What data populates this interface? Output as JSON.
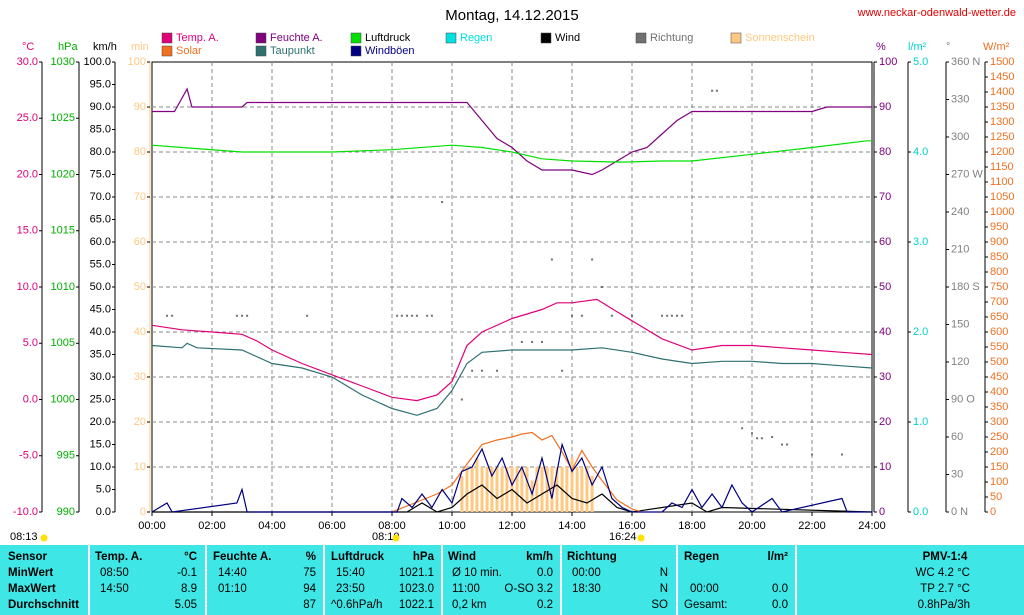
{
  "chart_data": {
    "type": "line",
    "title": "Montag, 14.12.2015",
    "source": "www.neckar-odenwald-wetter.de",
    "xlim": [
      0,
      24
    ],
    "xticks": [
      {
        "value": 0,
        "label": "00:00"
      },
      {
        "value": 2,
        "label": "02:00"
      },
      {
        "value": 4,
        "label": "04:00"
      },
      {
        "value": 6,
        "label": "06:00"
      },
      {
        "value": 8,
        "label": "08:00"
      },
      {
        "value": 10,
        "label": "10:00"
      },
      {
        "value": 12,
        "label": "12:00"
      },
      {
        "value": 14,
        "label": "14:00"
      },
      {
        "value": 16,
        "label": "16:00"
      },
      {
        "value": 18,
        "label": "18:00"
      },
      {
        "value": 20,
        "label": "20:00"
      },
      {
        "value": 22,
        "label": "22:00"
      },
      {
        "value": 24,
        "label": "24:00"
      }
    ],
    "xgrid": true,
    "annotations": [
      "08:13",
      "08:10",
      "16:24"
    ],
    "axes": {
      "temp": {
        "label": "°C",
        "color": "#e0007a",
        "lim": [
          -10,
          30
        ],
        "ticks": [
          {
            "value": -10,
            "label": "-10.0"
          },
          {
            "value": -5,
            "label": "-5.0"
          },
          {
            "value": 0,
            "label": "0.0"
          },
          {
            "value": 5,
            "label": "5.0"
          },
          {
            "value": 10,
            "label": "10.0"
          },
          {
            "value": 15,
            "label": "15.0"
          },
          {
            "value": 20,
            "label": "20.0"
          },
          {
            "value": 25,
            "label": "25.0"
          },
          {
            "value": 30,
            "label": "30.0"
          }
        ]
      },
      "press": {
        "label": "hPa",
        "color": "#00b000",
        "lim": [
          990,
          1030
        ],
        "ticks": [
          990,
          995,
          1000,
          1005,
          1010,
          1015,
          1020,
          1025,
          1030
        ]
      },
      "wind": {
        "label": "km/h",
        "color": "#000000",
        "lim": [
          0,
          100
        ],
        "ticks": [
          {
            "value": 0,
            "label": "0.0"
          },
          {
            "value": 5,
            "label": "5.0"
          },
          {
            "value": 10,
            "label": "10.0"
          },
          {
            "value": 15,
            "label": "15.0"
          },
          {
            "value": 20,
            "label": "20.0"
          },
          {
            "value": 25,
            "label": "25.0"
          },
          {
            "value": 30,
            "label": "30.0"
          },
          {
            "value": 35,
            "label": "35.0"
          },
          {
            "value": 40,
            "label": "40.0"
          },
          {
            "value": 45,
            "label": "45.0"
          },
          {
            "value": 50,
            "label": "50.0"
          },
          {
            "value": 55,
            "label": "55.0"
          },
          {
            "value": 60,
            "label": "60.0"
          },
          {
            "value": 65,
            "label": "65.0"
          },
          {
            "value": 70,
            "label": "70.0"
          },
          {
            "value": 75,
            "label": "75.0"
          },
          {
            "value": 80,
            "label": "80.0"
          },
          {
            "value": 85,
            "label": "85.0"
          },
          {
            "value": 90,
            "label": "90.0"
          },
          {
            "value": 95,
            "label": "95.0"
          },
          {
            "value": 100,
            "label": "100.0"
          }
        ]
      },
      "sun": {
        "label": "min",
        "color": "#ffc880",
        "lim": [
          0,
          100
        ],
        "ticks": [
          0,
          10,
          20,
          30,
          40,
          50,
          60,
          70,
          80,
          90,
          100
        ]
      },
      "hum": {
        "label": "%",
        "color": "#800080",
        "lim": [
          0,
          100
        ],
        "ticks": [
          0,
          10,
          20,
          30,
          40,
          50,
          60,
          70,
          80,
          90,
          100
        ],
        "grid": true
      },
      "rain": {
        "label": "l/m²",
        "color": "#00d0d0",
        "lim": [
          0,
          5
        ],
        "ticks": [
          {
            "value": 0,
            "label": "0.0"
          },
          {
            "value": 1,
            "label": "1.0"
          },
          {
            "value": 2,
            "label": "2.0"
          },
          {
            "value": 3,
            "label": "3.0"
          },
          {
            "value": 4,
            "label": "4.0"
          },
          {
            "value": 5,
            "label": "5.0"
          }
        ]
      },
      "dir": {
        "label": "°",
        "color": "#808080",
        "lim": [
          0,
          360
        ],
        "ticks": [
          {
            "value": 0,
            "label": "0 N"
          },
          30,
          60,
          {
            "value": 90,
            "label": "90 O"
          },
          120,
          150,
          {
            "value": 180,
            "label": "180 S"
          },
          210,
          240,
          {
            "value": 270,
            "label": "270 W"
          },
          300,
          330,
          {
            "value": 360,
            "label": "360 N"
          }
        ]
      },
      "solar": {
        "label": "W/m²",
        "color": "#f07020",
        "lim": [
          0,
          1500
        ],
        "ticks": [
          0,
          50,
          100,
          150,
          200,
          250,
          300,
          350,
          400,
          450,
          500,
          550,
          600,
          650,
          700,
          750,
          800,
          850,
          900,
          950,
          1000,
          1050,
          1100,
          1150,
          1200,
          1250,
          1300,
          1350,
          1400,
          1450,
          1500
        ]
      }
    },
    "series": [
      {
        "name": "Temp. A.",
        "color": "#e0007a",
        "axis": "temp",
        "style": "line",
        "x": [
          0,
          1,
          2,
          3,
          3.5,
          4,
          5,
          6,
          7,
          8,
          8.83,
          9.5,
          10,
          10.5,
          11,
          12,
          13,
          13.5,
          14,
          14.83,
          15.5,
          16,
          17,
          18,
          19,
          20,
          21,
          22,
          23,
          24
        ],
        "values": [
          6.6,
          6.2,
          6.0,
          5.8,
          5.2,
          4.4,
          3.2,
          2.2,
          1.2,
          0.2,
          -0.1,
          0.4,
          1.6,
          4.8,
          6.0,
          7.2,
          8.0,
          8.6,
          8.6,
          8.9,
          7.8,
          7.0,
          5.4,
          4.4,
          4.8,
          4.8,
          4.6,
          4.4,
          4.2,
          4.0
        ]
      },
      {
        "name": "Feuchte A.",
        "color": "#800080",
        "axis": "hum",
        "style": "line",
        "x": [
          0,
          0.75,
          1.17,
          1.33,
          3,
          3.17,
          10.5,
          11,
          11.5,
          12,
          12.5,
          13,
          13.5,
          14,
          14.67,
          15,
          15.5,
          16,
          16.5,
          17,
          17.5,
          18,
          18.5,
          19,
          20,
          22,
          22.5,
          24
        ],
        "values": [
          89,
          89,
          94,
          90,
          90,
          91,
          91,
          87,
          83,
          81,
          78,
          76,
          76,
          76,
          75,
          76,
          78,
          80,
          81,
          84,
          87,
          89,
          89,
          89,
          89,
          89,
          90,
          90
        ]
      },
      {
        "name": "Luftdruck",
        "color": "#00e000",
        "axis": "press",
        "style": "line",
        "x": [
          0,
          1,
          3,
          6,
          8,
          10,
          11,
          12,
          13,
          14,
          15.67,
          17,
          18,
          20,
          22,
          23.83,
          24
        ],
        "values": [
          1022.6,
          1022.4,
          1022.0,
          1022.0,
          1022.2,
          1022.6,
          1022.4,
          1022.0,
          1021.4,
          1021.2,
          1021.1,
          1021.2,
          1021.2,
          1021.8,
          1022.4,
          1023.0,
          1023.0
        ]
      },
      {
        "name": "Regen",
        "color": "#00e0e0",
        "axis": "rain",
        "style": "line",
        "x": [],
        "values": []
      },
      {
        "name": "Wind",
        "color": "#000000",
        "axis": "wind",
        "style": "line",
        "x": [
          0,
          8.5,
          9,
          9.5,
          10,
          10.5,
          11,
          11.5,
          12,
          12.5,
          13,
          13.5,
          14,
          14.5,
          15,
          15.5,
          16,
          18,
          18.5,
          19,
          24
        ],
        "values": [
          0,
          0,
          2,
          0,
          1,
          4,
          6,
          3,
          5,
          2,
          4,
          6,
          3,
          2,
          4,
          1,
          0,
          2,
          0,
          1,
          0
        ]
      },
      {
        "name": "Richtung",
        "color": "#707070",
        "axis": "dir",
        "style": "dots",
        "x": [
          0.5,
          0.67,
          2.83,
          3,
          3.17,
          5.17,
          8.17,
          8.33,
          8.5,
          8.67,
          8.83,
          9.17,
          9.33,
          9.67,
          10.33,
          10.67,
          11,
          11.5,
          12.33,
          12.67,
          13,
          13.33,
          13.67,
          14,
          14.33,
          14.67,
          15,
          15.33,
          16,
          17,
          17.17,
          17.33,
          17.5,
          17.67,
          18.67,
          18.83,
          19.67,
          20,
          20.17,
          20.33,
          20.67,
          21,
          21.17,
          22,
          23
        ],
        "values": [
          157,
          157,
          157,
          157,
          157,
          157,
          157,
          157,
          157,
          157,
          157,
          157,
          157,
          248,
          90,
          113,
          113,
          113,
          136,
          136,
          136,
          202,
          113,
          157,
          157,
          202,
          180,
          157,
          157,
          157,
          157,
          157,
          157,
          157,
          337,
          337,
          67,
          63,
          59,
          59,
          60,
          54,
          54,
          46,
          46
        ]
      },
      {
        "name": "Sonnenschein",
        "color": "#ffc880",
        "axis": "sun",
        "style": "bars",
        "x": [
          10.33,
          10.5,
          10.67,
          10.83,
          11,
          11.17,
          11.33,
          11.5,
          11.67,
          11.83,
          12,
          12.17,
          12.33,
          12.5,
          12.67,
          12.83,
          13,
          13.17,
          13.33,
          13.5,
          13.67,
          13.83,
          14,
          14.17,
          14.33,
          14.5,
          14.67
        ],
        "values": [
          8,
          10,
          10,
          12,
          10,
          10,
          10,
          10,
          10,
          10,
          10,
          10,
          10,
          10,
          7,
          10,
          10,
          10,
          10,
          10,
          10,
          10,
          12,
          10,
          10,
          10,
          8
        ]
      },
      {
        "name": "Solar",
        "color": "#f07020",
        "axis": "solar",
        "style": "line",
        "x": [
          8,
          8.5,
          9,
          9.5,
          10,
          10.5,
          11,
          11.5,
          12,
          12.33,
          12.67,
          13,
          13.33,
          13.67,
          14,
          14.33,
          14.67,
          15,
          15.5,
          16,
          16.33
        ],
        "values": [
          0,
          20,
          40,
          60,
          90,
          160,
          225,
          240,
          250,
          260,
          265,
          240,
          255,
          200,
          140,
          205,
          150,
          105,
          40,
          10,
          0
        ]
      },
      {
        "name": "Taupunkt",
        "color": "#2f7070",
        "axis": "temp",
        "style": "line",
        "x": [
          0,
          1,
          1.17,
          1.5,
          3,
          4,
          5,
          6,
          7,
          8,
          8.83,
          9.5,
          10,
          10.5,
          11,
          12,
          13,
          14,
          15,
          16,
          17,
          18,
          19,
          20,
          21,
          22,
          23,
          24
        ],
        "values": [
          4.8,
          4.6,
          5.0,
          4.6,
          4.4,
          3.2,
          2.8,
          2.0,
          0.4,
          -0.8,
          -1.4,
          -0.8,
          0.8,
          3.2,
          4.2,
          4.4,
          4.4,
          4.4,
          4.6,
          4.2,
          3.6,
          3.2,
          3.4,
          3.4,
          3.2,
          3.2,
          3.0,
          2.8
        ]
      },
      {
        "name": "Windböen",
        "color": "#000080",
        "axis": "wind",
        "style": "line",
        "x": [
          0,
          0.5,
          0.67,
          2.83,
          3,
          3.17,
          8.17,
          8.33,
          8.67,
          9,
          9.33,
          9.67,
          10,
          10.33,
          10.67,
          11,
          11.33,
          11.67,
          12,
          12.33,
          12.67,
          13,
          13.33,
          13.67,
          14,
          14.33,
          14.67,
          15,
          15.33,
          15.67,
          16,
          17,
          17.33,
          17.67,
          18,
          18.33,
          18.67,
          19,
          19.33,
          19.67,
          20,
          20.67,
          21,
          23,
          23.17,
          24
        ],
        "values": [
          0,
          2,
          0,
          2,
          5,
          0,
          0,
          3,
          1,
          4,
          1,
          5,
          2,
          9,
          10,
          14,
          8,
          12,
          6,
          10,
          4,
          12,
          3,
          15,
          9,
          12,
          6,
          10,
          3,
          1,
          0,
          0,
          2,
          1,
          5,
          1,
          4,
          1,
          6,
          2,
          0,
          3,
          0,
          3,
          0,
          0
        ]
      }
    ]
  },
  "table": {
    "header": [
      "Sensor",
      "Temp. A.",
      "°C",
      "Feuchte A.",
      "%",
      "Luftdruck",
      "hPa",
      "Wind",
      "km/h",
      "Richtung",
      "Regen",
      "l/m²",
      "PMV-1:4"
    ],
    "rows": [
      [
        "MinWert",
        "08:50",
        "-0.1",
        "14:40",
        "75",
        "15:40",
        "1021.1",
        "Ø 10 min.",
        "0.0",
        "00:00",
        "N",
        "WC 4.2 °C"
      ],
      [
        "MaxWert",
        "14:50",
        "8.9",
        "01:10",
        "94",
        "23:50",
        "1023.0",
        "11:00",
        "O-SO 3.2",
        "18:30",
        "N",
        "00:00",
        "0.0",
        "TP 2.7 °C"
      ],
      [
        "Durchschnitt",
        "5.05",
        "87",
        "^0.6hPa/h",
        "1022.1",
        "0,2 km",
        "0.2",
        "SO",
        "Gesamt:",
        "0.0",
        "0.8hPa/3h"
      ]
    ]
  }
}
